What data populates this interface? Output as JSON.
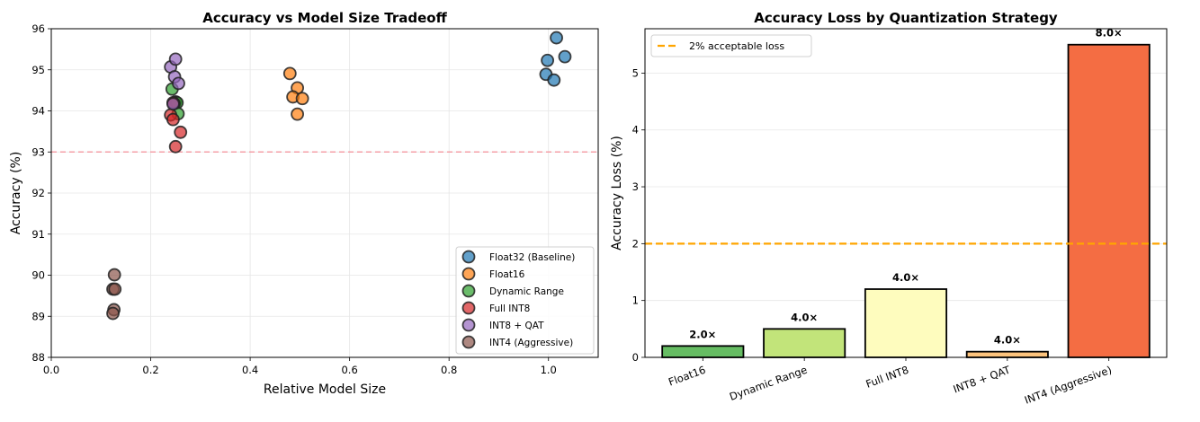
{
  "chart_data": [
    {
      "type": "scatter",
      "title": "Accuracy vs Model Size Tradeoff",
      "xlabel": "Relative Model Size",
      "ylabel": "Accuracy (%)",
      "xlim": [
        0.0,
        1.1
      ],
      "ylim": [
        88,
        96
      ],
      "xticks": [
        0.0,
        0.2,
        0.4,
        0.6,
        0.8,
        1.0
      ],
      "xtick_labels": [
        "0.0",
        "0.2",
        "0.4",
        "0.6",
        "0.8",
        "1.0"
      ],
      "yticks": [
        88,
        89,
        90,
        91,
        92,
        93,
        94,
        95,
        96
      ],
      "ytick_labels": [
        "88",
        "89",
        "90",
        "91",
        "92",
        "93",
        "94",
        "95",
        "96"
      ],
      "grid": true,
      "legend_position": "bottom-right",
      "reference_line": {
        "y": 93,
        "color": "#f4a0a8",
        "style": "dashed"
      },
      "series": [
        {
          "name": "Float32 (Baseline)",
          "color": "#1f77b4",
          "points": [
            [
              1.016,
              95.78
            ],
            [
              0.998,
              95.23
            ],
            [
              1.033,
              95.32
            ],
            [
              0.995,
              94.89
            ],
            [
              1.011,
              94.75
            ]
          ]
        },
        {
          "name": "Float16",
          "color": "#ff7f0e",
          "points": [
            [
              0.48,
              94.91
            ],
            [
              0.495,
              94.56
            ],
            [
              0.486,
              94.34
            ],
            [
              0.505,
              94.3
            ],
            [
              0.495,
              93.92
            ]
          ]
        },
        {
          "name": "Dynamic Range",
          "color": "#2ca02c",
          "points": [
            [
              0.243,
              94.53
            ],
            [
              0.25,
              94.22
            ],
            [
              0.253,
              94.2
            ],
            [
              0.255,
              93.93
            ],
            [
              0.247,
              94.18
            ]
          ]
        },
        {
          "name": "Full INT8",
          "color": "#d62728",
          "points": [
            [
              0.24,
              93.9
            ],
            [
              0.245,
              93.79
            ],
            [
              0.245,
              94.2
            ],
            [
              0.26,
              93.48
            ],
            [
              0.25,
              93.13
            ]
          ]
        },
        {
          "name": "INT8 + QAT",
          "color": "#9467bd",
          "points": [
            [
              0.24,
              95.07
            ],
            [
              0.248,
              94.83
            ],
            [
              0.256,
              94.67
            ],
            [
              0.245,
              94.17
            ],
            [
              0.25,
              95.26
            ]
          ]
        },
        {
          "name": "INT4 (Aggressive)",
          "color": "#8c564b",
          "points": [
            [
              0.127,
              90.01
            ],
            [
              0.124,
              89.66
            ],
            [
              0.128,
              89.66
            ],
            [
              0.126,
              89.16
            ],
            [
              0.124,
              89.07
            ]
          ]
        }
      ]
    },
    {
      "type": "bar",
      "title": "Accuracy Loss by Quantization Strategy",
      "xlabel": "",
      "ylabel": "Accuracy Loss (%)",
      "ylim": [
        0,
        5.78
      ],
      "yticks": [
        0,
        1,
        2,
        3,
        4,
        5
      ],
      "ytick_labels": [
        "0",
        "1",
        "2",
        "3",
        "4",
        "5"
      ],
      "grid": true,
      "legend_position": "top-left",
      "categories": [
        "Float16",
        "Dynamic Range",
        "Full INT8",
        "INT8 + QAT",
        "INT4 (Aggressive)"
      ],
      "values": [
        0.2,
        0.5,
        1.2,
        0.1,
        5.5
      ],
      "colors": [
        "#66bd63",
        "#c2e47a",
        "#fefcbe",
        "#fdc47d",
        "#f46d43"
      ],
      "data_labels": [
        "2.0×",
        "4.0×",
        "4.0×",
        "4.0×",
        "8.0×"
      ],
      "reference_line": {
        "y": 2,
        "label": "2% acceptable loss",
        "color": "#ffa500",
        "style": "dashed"
      }
    }
  ]
}
